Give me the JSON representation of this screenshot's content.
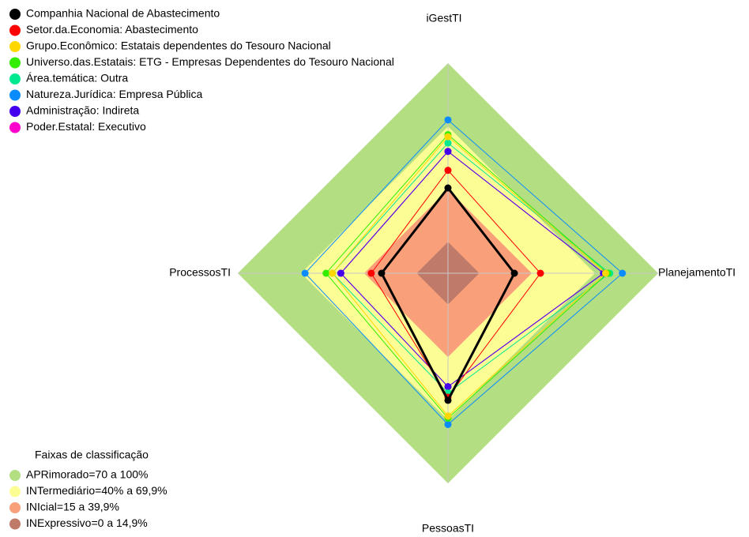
{
  "chart_data": {
    "type": "radar",
    "axes": [
      "iGestTI",
      "PlanejamentoTI",
      "PessoasTI",
      "ProcessosTI"
    ],
    "rlim": [
      0,
      100
    ],
    "series": [
      {
        "name": "Companhia Nacional de Abastecimento",
        "color": "#000000",
        "values": [
          40.6,
          31.6,
          60.5,
          31.6
        ]
      },
      {
        "name": "Setor.da.Economia: Abastecimento",
        "color": "#ff0000",
        "values": [
          49,
          44,
          59,
          36.5
        ]
      },
      {
        "name": "Grupo.Econômico: Estatais dependentes do Tesouro Nacional",
        "color": "#ffd700",
        "values": [
          65,
          75,
          68,
          55
        ]
      },
      {
        "name": "Universo.das.Estatais: ETG - Empresas Dependentes do Tesouro Nacional",
        "color": "#33ee00",
        "values": [
          66,
          76,
          69,
          58
        ]
      },
      {
        "name": "Área.temática: Outra",
        "color": "#00e890",
        "values": [
          62,
          77,
          57,
          55
        ]
      },
      {
        "name": "Natureza.Jurídica: Empresa Pública",
        "color": "#0a8cff",
        "values": [
          73,
          83,
          72,
          68
        ]
      },
      {
        "name": "Administração: Indireta",
        "color": "#4400ee",
        "values": [
          58,
          74,
          54,
          51
        ]
      },
      {
        "name": "Poder.Estatal: Executivo",
        "color": "#ff00cc",
        "values": [
          58,
          74,
          54,
          51
        ]
      }
    ],
    "bands_title": "Faixas de classificação",
    "bands": [
      {
        "label": "APRimorado=70 a 100%",
        "color": "#b3de81",
        "from": 70,
        "to": 100
      },
      {
        "label": "INTermediário=40% a 69,9%",
        "color": "#fdfd96",
        "from": 40,
        "to": 69.9
      },
      {
        "label": "INIcial=15 a 39,9%",
        "color": "#f9a07a",
        "from": 15,
        "to": 39.9
      },
      {
        "label": "INExpressivo=0 a 14,9%",
        "color": "#c07a6a",
        "from": 0,
        "to": 14.9
      }
    ]
  }
}
